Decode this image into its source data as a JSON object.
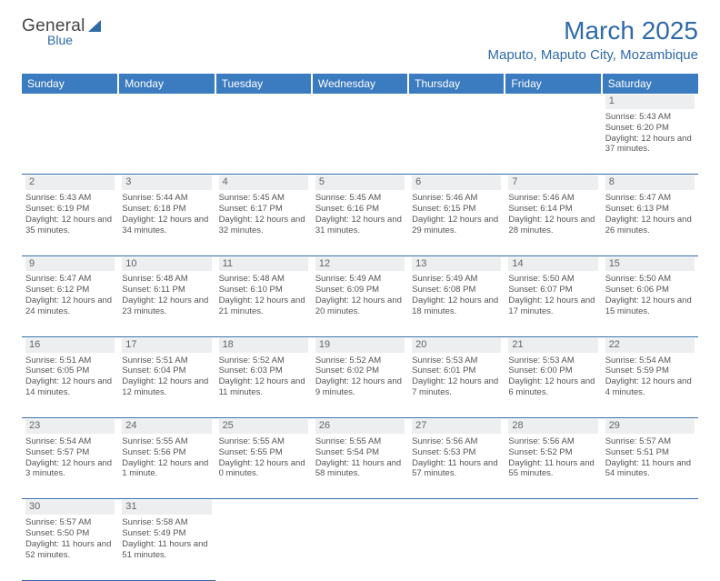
{
  "logo": {
    "general": "General",
    "blue": "Blue"
  },
  "title": "March 2025",
  "location": "Maputo, Maputo City, Mozambique",
  "dayHeaders": [
    "Sunday",
    "Monday",
    "Tuesday",
    "Wednesday",
    "Thursday",
    "Friday",
    "Saturday"
  ],
  "colors": {
    "headerBg": "#3b7bbf",
    "accent": "#2f6aa8",
    "dayNumBg": "#eceeef",
    "text": "#555"
  },
  "weeks": [
    [
      null,
      null,
      null,
      null,
      null,
      null,
      {
        "n": "1",
        "sr": "5:43 AM",
        "ss": "6:20 PM",
        "dl": "12 hours and 37 minutes."
      }
    ],
    [
      {
        "n": "2",
        "sr": "5:43 AM",
        "ss": "6:19 PM",
        "dl": "12 hours and 35 minutes."
      },
      {
        "n": "3",
        "sr": "5:44 AM",
        "ss": "6:18 PM",
        "dl": "12 hours and 34 minutes."
      },
      {
        "n": "4",
        "sr": "5:45 AM",
        "ss": "6:17 PM",
        "dl": "12 hours and 32 minutes."
      },
      {
        "n": "5",
        "sr": "5:45 AM",
        "ss": "6:16 PM",
        "dl": "12 hours and 31 minutes."
      },
      {
        "n": "6",
        "sr": "5:46 AM",
        "ss": "6:15 PM",
        "dl": "12 hours and 29 minutes."
      },
      {
        "n": "7",
        "sr": "5:46 AM",
        "ss": "6:14 PM",
        "dl": "12 hours and 28 minutes."
      },
      {
        "n": "8",
        "sr": "5:47 AM",
        "ss": "6:13 PM",
        "dl": "12 hours and 26 minutes."
      }
    ],
    [
      {
        "n": "9",
        "sr": "5:47 AM",
        "ss": "6:12 PM",
        "dl": "12 hours and 24 minutes."
      },
      {
        "n": "10",
        "sr": "5:48 AM",
        "ss": "6:11 PM",
        "dl": "12 hours and 23 minutes."
      },
      {
        "n": "11",
        "sr": "5:48 AM",
        "ss": "6:10 PM",
        "dl": "12 hours and 21 minutes."
      },
      {
        "n": "12",
        "sr": "5:49 AM",
        "ss": "6:09 PM",
        "dl": "12 hours and 20 minutes."
      },
      {
        "n": "13",
        "sr": "5:49 AM",
        "ss": "6:08 PM",
        "dl": "12 hours and 18 minutes."
      },
      {
        "n": "14",
        "sr": "5:50 AM",
        "ss": "6:07 PM",
        "dl": "12 hours and 17 minutes."
      },
      {
        "n": "15",
        "sr": "5:50 AM",
        "ss": "6:06 PM",
        "dl": "12 hours and 15 minutes."
      }
    ],
    [
      {
        "n": "16",
        "sr": "5:51 AM",
        "ss": "6:05 PM",
        "dl": "12 hours and 14 minutes."
      },
      {
        "n": "17",
        "sr": "5:51 AM",
        "ss": "6:04 PM",
        "dl": "12 hours and 12 minutes."
      },
      {
        "n": "18",
        "sr": "5:52 AM",
        "ss": "6:03 PM",
        "dl": "12 hours and 11 minutes."
      },
      {
        "n": "19",
        "sr": "5:52 AM",
        "ss": "6:02 PM",
        "dl": "12 hours and 9 minutes."
      },
      {
        "n": "20",
        "sr": "5:53 AM",
        "ss": "6:01 PM",
        "dl": "12 hours and 7 minutes."
      },
      {
        "n": "21",
        "sr": "5:53 AM",
        "ss": "6:00 PM",
        "dl": "12 hours and 6 minutes."
      },
      {
        "n": "22",
        "sr": "5:54 AM",
        "ss": "5:59 PM",
        "dl": "12 hours and 4 minutes."
      }
    ],
    [
      {
        "n": "23",
        "sr": "5:54 AM",
        "ss": "5:57 PM",
        "dl": "12 hours and 3 minutes."
      },
      {
        "n": "24",
        "sr": "5:55 AM",
        "ss": "5:56 PM",
        "dl": "12 hours and 1 minute."
      },
      {
        "n": "25",
        "sr": "5:55 AM",
        "ss": "5:55 PM",
        "dl": "12 hours and 0 minutes."
      },
      {
        "n": "26",
        "sr": "5:55 AM",
        "ss": "5:54 PM",
        "dl": "11 hours and 58 minutes."
      },
      {
        "n": "27",
        "sr": "5:56 AM",
        "ss": "5:53 PM",
        "dl": "11 hours and 57 minutes."
      },
      {
        "n": "28",
        "sr": "5:56 AM",
        "ss": "5:52 PM",
        "dl": "11 hours and 55 minutes."
      },
      {
        "n": "29",
        "sr": "5:57 AM",
        "ss": "5:51 PM",
        "dl": "11 hours and 54 minutes."
      }
    ],
    [
      {
        "n": "30",
        "sr": "5:57 AM",
        "ss": "5:50 PM",
        "dl": "11 hours and 52 minutes."
      },
      {
        "n": "31",
        "sr": "5:58 AM",
        "ss": "5:49 PM",
        "dl": "11 hours and 51 minutes."
      },
      null,
      null,
      null,
      null,
      null
    ]
  ],
  "labels": {
    "sunrise": "Sunrise:",
    "sunset": "Sunset:",
    "daylight": "Daylight:"
  }
}
